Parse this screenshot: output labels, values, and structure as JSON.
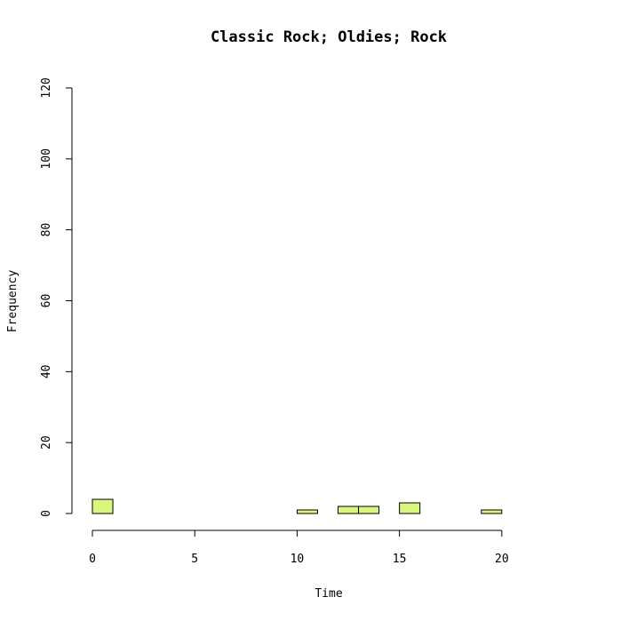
{
  "chart_data": {
    "type": "bar",
    "title": "Classic Rock; Oldies; Rock",
    "xlabel": "Time",
    "ylabel": "Frequency",
    "bin_width": 1,
    "bins": [
      {
        "start": 0,
        "end": 1,
        "count": 4
      },
      {
        "start": 1,
        "end": 2,
        "count": 0
      },
      {
        "start": 2,
        "end": 3,
        "count": 0
      },
      {
        "start": 3,
        "end": 4,
        "count": 0
      },
      {
        "start": 4,
        "end": 5,
        "count": 0
      },
      {
        "start": 5,
        "end": 6,
        "count": 0
      },
      {
        "start": 6,
        "end": 7,
        "count": 0
      },
      {
        "start": 7,
        "end": 8,
        "count": 0
      },
      {
        "start": 8,
        "end": 9,
        "count": 0
      },
      {
        "start": 9,
        "end": 10,
        "count": 0
      },
      {
        "start": 10,
        "end": 11,
        "count": 1
      },
      {
        "start": 11,
        "end": 12,
        "count": 0
      },
      {
        "start": 12,
        "end": 13,
        "count": 2
      },
      {
        "start": 13,
        "end": 14,
        "count": 2
      },
      {
        "start": 14,
        "end": 15,
        "count": 0
      },
      {
        "start": 15,
        "end": 16,
        "count": 3
      },
      {
        "start": 16,
        "end": 17,
        "count": 0
      },
      {
        "start": 17,
        "end": 18,
        "count": 0
      },
      {
        "start": 18,
        "end": 19,
        "count": 0
      },
      {
        "start": 19,
        "end": 20,
        "count": 1
      },
      {
        "start": 20,
        "end": 21,
        "count": 0
      },
      {
        "start": 21,
        "end": 22,
        "count": 0
      },
      {
        "start": 22,
        "end": 23,
        "count": 0
      },
      {
        "start": 23,
        "end": 24,
        "count": 0
      }
    ],
    "xlim": [
      0,
      24
    ],
    "ylim": [
      0,
      120
    ],
    "xticks": [
      "0",
      "5",
      "10",
      "15",
      "20"
    ],
    "yticks": [
      "0",
      "20",
      "40",
      "60",
      "80",
      "100",
      "120"
    ],
    "grid": false,
    "bar_color": "#d9f77d"
  }
}
